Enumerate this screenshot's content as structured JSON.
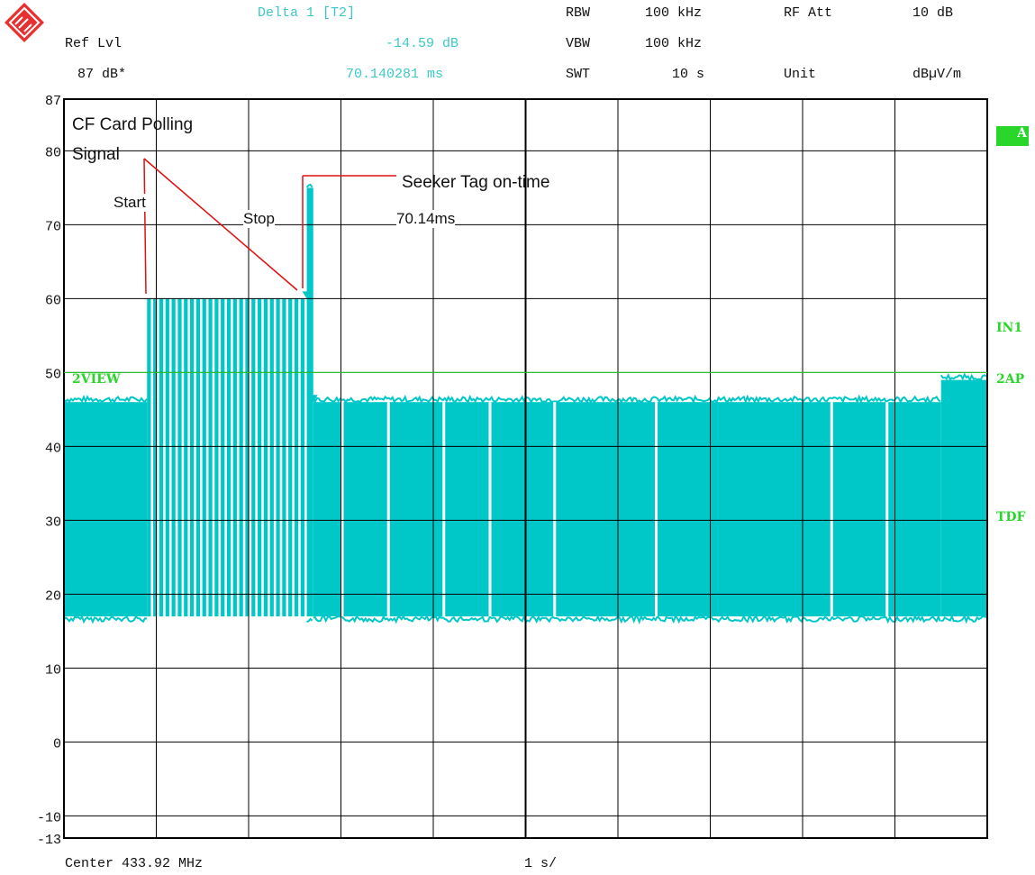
{
  "header": {
    "marker_title": "Delta 1 [T2]",
    "ref_lvl_label": "Ref Lvl",
    "ref_lvl_value": "87 dB*",
    "delta_level": "-14.59 dB",
    "delta_time": "70.140281 ms",
    "rbw_label": "RBW",
    "rbw_value": "100 kHz",
    "vbw_label": "VBW",
    "vbw_value": "100 kHz",
    "swt_label": "SWT",
    "swt_value": "10 s",
    "rfatt_label": "RF Att",
    "rfatt_value": "10 dB",
    "unit_label": "Unit",
    "unit_value": "dBµV/m"
  },
  "footer": {
    "center_label": "Center 433.92 MHz",
    "span_label": "1 s/"
  },
  "side_labels": {
    "trace": "A",
    "in1": "IN1",
    "sap": "2AP",
    "tdf": "TDF",
    "view": "2VIEW"
  },
  "annotations": {
    "title_line1": "CF Card Polling",
    "title_line2": "Signal",
    "start": "Start",
    "stop": "Stop",
    "seeker": "Seeker Tag on-time",
    "delta": "70.14ms"
  },
  "colors": {
    "trace": "#00c8c8",
    "header_cyan": "#3cc8c8",
    "marker": "#2ad62a",
    "annotation_line": "#e01010",
    "grid": "#000000"
  },
  "chart_data": {
    "type": "line",
    "xlabel": "",
    "ylabel": "",
    "x_unit": "s",
    "x_range": [
      0,
      10
    ],
    "ylim": [
      -13,
      87
    ],
    "ytick_labels": [
      "87",
      "80",
      "70",
      "60",
      "50",
      "40",
      "30",
      "20",
      "10",
      "0",
      "-10",
      "-13"
    ],
    "yticks": [
      87,
      80,
      70,
      60,
      50,
      40,
      30,
      20,
      10,
      0,
      -10,
      -13
    ],
    "grid": true,
    "series": [
      {
        "name": "",
        "segments": [
          {
            "x_start": 0.0,
            "x_end": 0.9,
            "min": 17,
            "max": 46
          },
          {
            "x_start": 0.9,
            "x_end": 2.63,
            "min": 17,
            "max": 60,
            "pattern": "polling bursts"
          },
          {
            "x_start": 2.63,
            "x_end": 2.7,
            "min": 17,
            "max": 75
          },
          {
            "x_start": 2.7,
            "x_end": 9.5,
            "min": 17,
            "max": 46
          },
          {
            "x_start": 9.5,
            "x_end": 10.0,
            "min": 17,
            "max": 49
          }
        ]
      }
    ],
    "markers": [
      {
        "name": "1",
        "x": 2.63,
        "y": 60
      },
      {
        "name": "T2",
        "x": 2.7,
        "y": 46
      }
    ],
    "threshold_lines": [
      {
        "name": "2VIEW",
        "y": 50
      }
    ]
  }
}
